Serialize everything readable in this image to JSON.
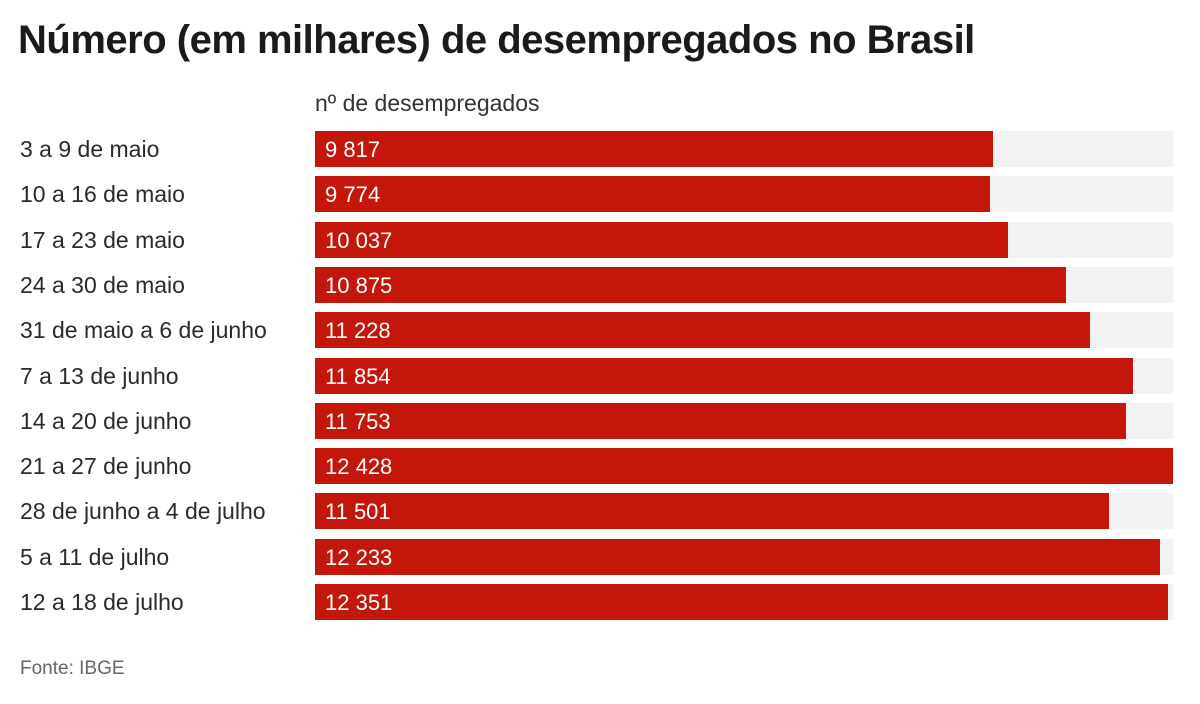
{
  "chart_data": {
    "type": "bar",
    "orientation": "horizontal",
    "title": "Número (em milhares) de desempregados no Brasil",
    "value_header": "nº de desempregados",
    "source": "Fonte: IBGE",
    "categories": [
      "3 a 9 de maio",
      "10 a 16 de maio",
      "17 a 23 de maio",
      "24 a 30 de maio",
      "31 de maio a 6 de junho",
      "7 a 13 de junho",
      "14 a 20 de junho",
      "21 a 27 de junho",
      "28 de junho a 4 de julho",
      "5 a 11 de julho",
      "12 a 18 de julho"
    ],
    "values": [
      9817,
      9774,
      10037,
      10875,
      11228,
      11854,
      11753,
      12428,
      11501,
      12233,
      12351
    ],
    "value_labels": [
      "9 817",
      "9 774",
      "10 037",
      "10 875",
      "11 228",
      "11 854",
      "11 753",
      "12 428",
      "11 501",
      "12 233",
      "12 351"
    ],
    "xlim": [
      0,
      12428
    ],
    "colors": {
      "bar": "#c4170c",
      "track": "#f2f2f2"
    }
  }
}
